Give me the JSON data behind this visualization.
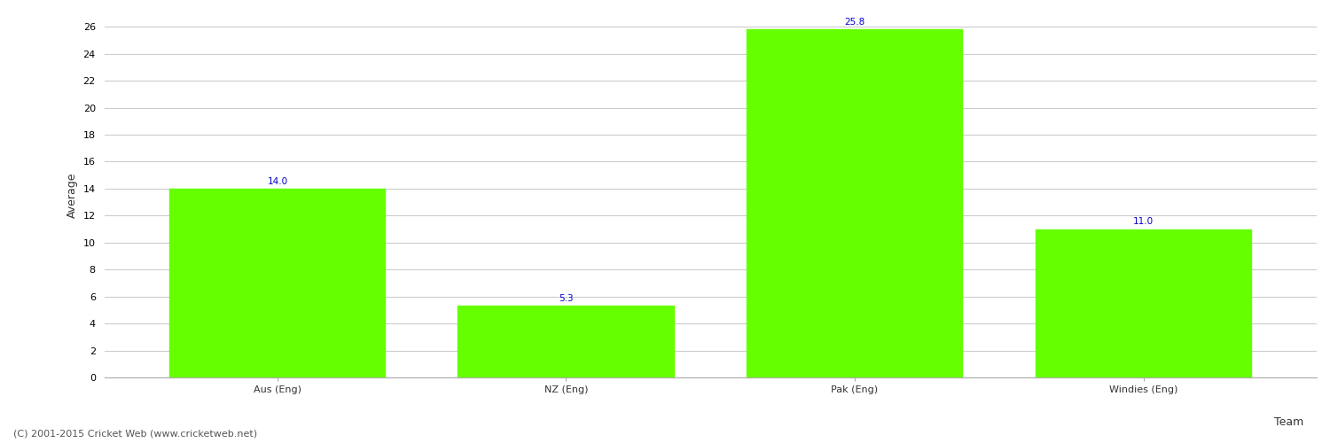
{
  "categories": [
    "Aus (Eng)",
    "NZ (Eng)",
    "Pak (Eng)",
    "Windies (Eng)"
  ],
  "values": [
    14.0,
    5.3,
    25.8,
    11.0
  ],
  "bar_color": "#66ff00",
  "bar_edge_color": "#66ff00",
  "xlabel": "Team",
  "ylabel": "Average",
  "ylim": [
    0,
    27
  ],
  "yticks": [
    0,
    2,
    4,
    6,
    8,
    10,
    12,
    14,
    16,
    18,
    20,
    22,
    24,
    26
  ],
  "label_color": "#0000cc",
  "label_fontsize": 7.5,
  "axis_label_fontsize": 9,
  "tick_fontsize": 8,
  "background_color": "#ffffff",
  "grid_color": "#cccccc",
  "footer_text": "(C) 2001-2015 Cricket Web (www.cricketweb.net)",
  "footer_fontsize": 8,
  "footer_color": "#555555",
  "bar_width": 0.75
}
